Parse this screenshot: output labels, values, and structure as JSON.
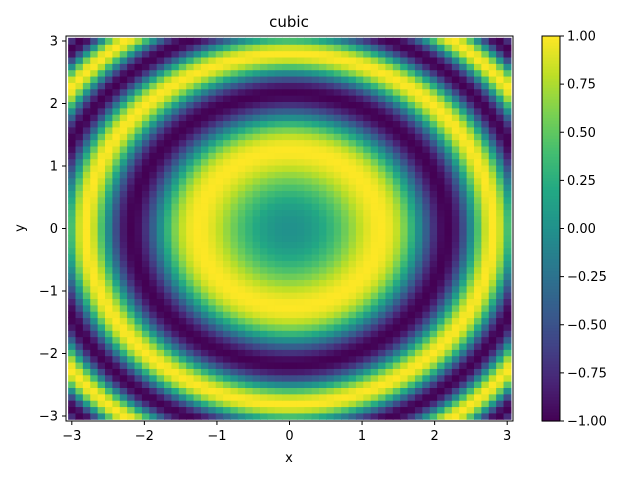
{
  "chart_data": {
    "type": "heatmap",
    "title": "cubic",
    "xlabel": "x",
    "ylabel": "y",
    "xlim": [
      -3.08,
      3.08
    ],
    "ylim": [
      -3.08,
      3.08
    ],
    "x_ticks": [
      -3,
      -2,
      -1,
      0,
      1,
      2,
      3
    ],
    "y_ticks": [
      -3,
      -2,
      -1,
      0,
      1,
      2,
      3
    ],
    "x_tick_labels": [
      "−3",
      "−2",
      "−1",
      "0",
      "1",
      "2",
      "3"
    ],
    "y_tick_labels": [
      "−3",
      "−2",
      "−1",
      "0",
      "1",
      "2",
      "3"
    ],
    "grid": {
      "x_range": [
        -3.0,
        3.0
      ],
      "y_range": [
        -3.0,
        3.0
      ],
      "n": 60,
      "function": "sin(x^2 + y^2)",
      "interpolation": "cubic"
    },
    "colormap": "viridis",
    "colorbar": {
      "vmin": -1.0,
      "vmax": 1.0,
      "ticks": [
        -1.0,
        -0.75,
        -0.5,
        -0.25,
        0.0,
        0.25,
        0.5,
        0.75,
        1.0
      ],
      "tick_labels": [
        "−1.00",
        "−0.75",
        "−0.50",
        "−0.25",
        "0.00",
        "0.25",
        "0.50",
        "0.75",
        "1.00"
      ]
    }
  }
}
